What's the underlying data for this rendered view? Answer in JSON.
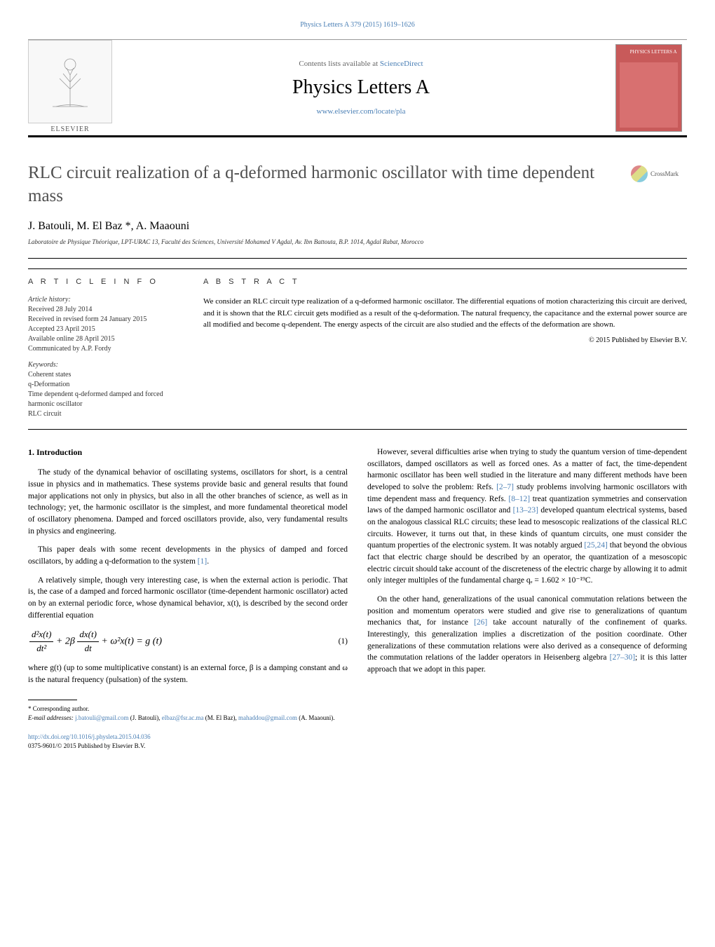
{
  "top_citation": "Physics Letters A 379 (2015) 1619–1626",
  "header": {
    "contents_prefix": "Contents lists available at ",
    "contents_link": "ScienceDirect",
    "journal_title": "Physics Letters A",
    "journal_url": "www.elsevier.com/locate/pla",
    "publisher": "ELSEVIER",
    "cover_label": "PHYSICS LETTERS A"
  },
  "crossmark_label": "CrossMark",
  "title": "RLC circuit realization of a q-deformed harmonic oscillator with time dependent mass",
  "authors": "J. Batouli, M. El Baz *, A. Maaouni",
  "affiliation": "Laboratoire de Physique Théorique, LPT-URAC 13, Faculté des Sciences, Université Mohamed V Agdal, Av. Ibn Battouta, B.P. 1014, Agdal Rabat, Morocco",
  "article_info": {
    "heading": "A R T I C L E   I N F O",
    "history_label": "Article history:",
    "history_lines": [
      "Received 28 July 2014",
      "Received in revised form 24 January 2015",
      "Accepted 23 April 2015",
      "Available online 28 April 2015",
      "Communicated by A.P. Fordy"
    ],
    "keywords_label": "Keywords:",
    "keywords": [
      "Coherent states",
      "q-Deformation",
      "Time dependent q-deformed damped and forced harmonic oscillator",
      "RLC circuit"
    ]
  },
  "abstract": {
    "heading": "A B S T R A C T",
    "text": "We consider an RLC circuit type realization of a q-deformed harmonic oscillator. The differential equations of motion characterizing this circuit are derived, and it is shown that the RLC circuit gets modified as a result of the q-deformation. The natural frequency, the capacitance and the external power source are all modified and become q-dependent. The energy aspects of the circuit are also studied and the effects of the deformation are shown.",
    "copyright": "© 2015 Published by Elsevier B.V."
  },
  "body": {
    "section_heading": "1. Introduction",
    "left_paras": [
      "The study of the dynamical behavior of oscillating systems, oscillators for short, is a central issue in physics and in mathematics. These systems provide basic and general results that found major applications not only in physics, but also in all the other branches of science, as well as in technology; yet, the harmonic oscillator is the simplest, and more fundamental theoretical model of oscillatory phenomena. Damped and forced oscillators provide, also, very fundamental results in physics and engineering.",
      "This paper deals with some recent developments in the physics of damped and forced oscillators, by adding a q-deformation to the system ",
      "[1]",
      ".",
      "A relatively simple, though very interesting case, is when the external action is periodic. That is, the case of a damped and forced harmonic oscillator (time-dependent harmonic oscillator) acted on by an external periodic force, whose dynamical behavior, x(t), is described by the second order differential equation",
      "where g(t) (up to some multiplicative constant) is an external force, β is a damping constant and ω is the natural frequency (pulsation) of the system."
    ],
    "equation": {
      "num1": "d²x(t)",
      "den1": "dt²",
      "mid": " + 2β ",
      "num2": "dx(t)",
      "den2": "dt",
      "tail": " + ω²x(t) = g (t)",
      "number": "(1)"
    },
    "right_paras": [
      "However, several difficulties arise when trying to study the quantum version of time-dependent oscillators, damped oscillators as well as forced ones. As a matter of fact, the time-dependent harmonic oscillator has been well studied in the literature and many different methods have been developed to solve the problem: Refs. ",
      "[2–7]",
      " study problems involving harmonic oscillators with time dependent mass and frequency. Refs. ",
      "[8–12]",
      " treat quantization symmetries and conservation laws of the damped harmonic oscillator and ",
      "[13–23]",
      " developed quantum electrical systems, based on the analogous classical RLC circuits; these lead to mesoscopic realizations of the classical RLC circuits. However, it turns out that, in these kinds of quantum circuits, one must consider the quantum properties of the electronic system. It was notably argued ",
      "[25,24]",
      " that beyond the obvious fact that electric charge should be described by an operator, the quantization of a mesoscopic electric circuit should take account of the discreteness of the electric charge by allowing it to admit only integer multiples of the fundamental charge qₑ = 1.602 × 10⁻¹⁹C.",
      "On the other hand, generalizations of the usual canonical commutation relations between the position and momentum operators were studied and give rise to generalizations of quantum mechanics that, for instance ",
      "[26]",
      " take account naturally of the confinement of quarks. Interestingly, this generalization implies a discretization of the position coordinate. Other generalizations of these commutation relations were also derived as a consequence of deforming the commutation relations of the ladder operators in Heisenberg algebra ",
      "[27–30]",
      "; it is this latter approach that we adopt in this paper."
    ]
  },
  "footnotes": {
    "corr": "* Corresponding author.",
    "email_label": "E-mail addresses: ",
    "emails": [
      {
        "addr": "j.batouli@gmail.com",
        "name": " (J. Batouli), "
      },
      {
        "addr": "elbaz@fsr.ac.ma",
        "name": " (M. El Baz), "
      },
      {
        "addr": "mahaddou@gmail.com",
        "name": " (A. Maaouni)."
      }
    ],
    "doi": "http://dx.doi.org/10.1016/j.physleta.2015.04.036",
    "issn_line": "0375-9601/© 2015 Published by Elsevier B.V."
  }
}
